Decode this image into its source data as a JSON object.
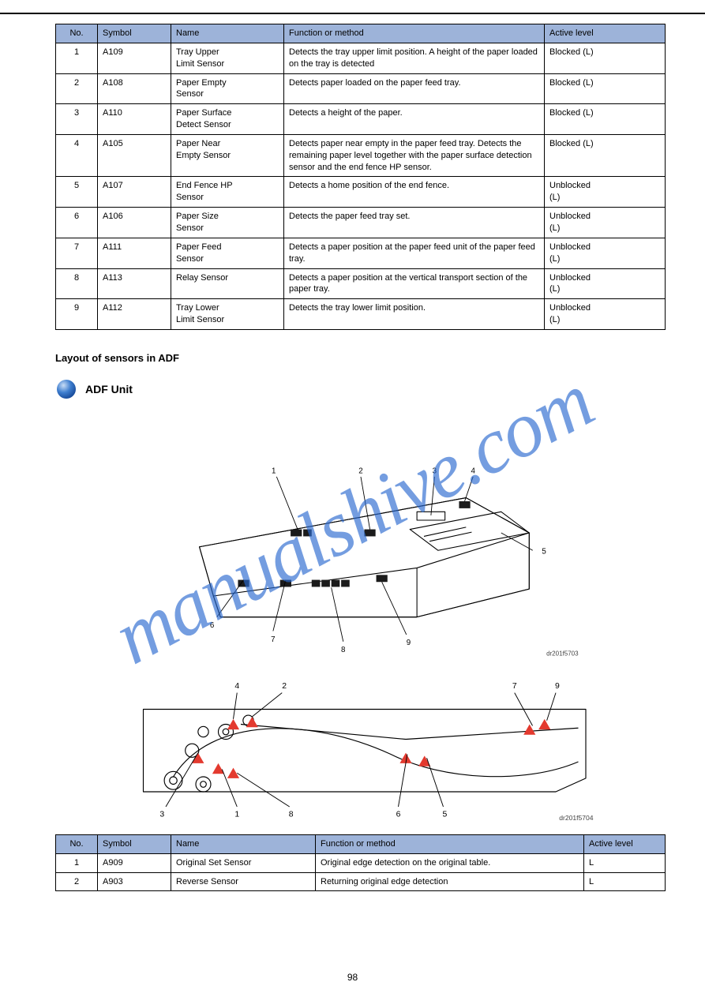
{
  "upper_table": {
    "headers": [
      "No.",
      "Symbol",
      "Name",
      "Function or method",
      "Active level"
    ],
    "rows": [
      [
        "1",
        "A109",
        "Tray Upper\nLimit Sensor",
        "Detects the tray upper limit position. A height of the paper loaded on the tray is detected",
        "Blocked (L)"
      ],
      [
        "2",
        "A108",
        "Paper Empty\nSensor",
        "Detects paper loaded on the paper feed tray.",
        "Blocked (L)"
      ],
      [
        "3",
        "A110",
        "Paper Surface\nDetect Sensor",
        "Detects a height of the paper.",
        "Blocked (L)"
      ],
      [
        "4",
        "A105",
        "Paper Near\nEmpty Sensor",
        "Detects paper near empty in the paper feed tray. Detects the remaining paper level together with the paper surface detection sensor and the end fence HP sensor.",
        "Blocked (L)"
      ],
      [
        "5",
        "A107",
        "End Fence HP\nSensor",
        "Detects a home position of the end fence.",
        "Unblocked\n(L)"
      ],
      [
        "6",
        "A106",
        "Paper Size\nSensor",
        "Detects the paper feed tray set.",
        "Unblocked\n(L)"
      ],
      [
        "7",
        "A111",
        "Paper Feed\nSensor",
        "Detects a paper position at the paper feed unit of the paper feed tray.",
        "Unblocked\n(L)"
      ],
      [
        "8",
        "A113",
        "Relay Sensor",
        "Detects a paper position at the vertical transport section of the paper tray.",
        "Unblocked\n(L)"
      ],
      [
        "9",
        "A112",
        "Tray Lower\nLimit Sensor",
        "Detects the tray lower limit position.",
        "Unblocked\n(L)"
      ]
    ]
  },
  "section_title": "Layout of sensors in ADF",
  "bullet_text": "ADF Unit",
  "bullet_color_outer": "#2f74c9",
  "bullet_color_inner": "#8db7e6",
  "diagram1": {
    "caption": "dr201f5703",
    "labels": [
      "1",
      "2",
      "3",
      "4",
      "5",
      "6",
      "7",
      "8",
      "9"
    ]
  },
  "diagram2": {
    "caption": "dr201f5704",
    "labels": [
      "4",
      "2",
      "3",
      "1",
      "8",
      "6",
      "5",
      "7",
      "9"
    ],
    "marker_color": "#e33a2f"
  },
  "lower_table": {
    "headers": [
      "No.",
      "Symbol",
      "Name",
      "Function or method",
      "Active level"
    ],
    "rows": [
      [
        "1",
        "A909",
        "Original Set Sensor",
        "Original edge detection on the original table.",
        "L"
      ],
      [
        "2",
        "A903",
        "Reverse Sensor",
        "Returning original edge detection",
        "L"
      ]
    ]
  },
  "page_number": "98",
  "watermark": "manualshive.com"
}
